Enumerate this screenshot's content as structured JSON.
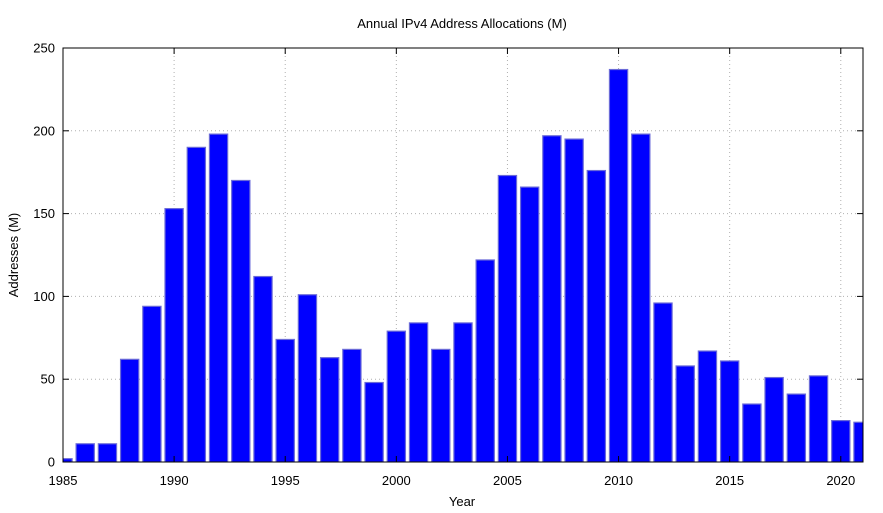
{
  "chart_data": {
    "type": "bar",
    "title": "Annual IPv4 Address Allocations (M)",
    "xlabel": "Year",
    "ylabel": "Addresses (M)",
    "xlim": [
      1985,
      2021
    ],
    "ylim": [
      0,
      250
    ],
    "xticks": [
      1985,
      1990,
      1995,
      2000,
      2005,
      2010,
      2015,
      2020
    ],
    "yticks": [
      0,
      50,
      100,
      150,
      200,
      250
    ],
    "grid": true,
    "bar_color": "#0000ff",
    "x": [
      1985,
      1986,
      1987,
      1988,
      1989,
      1990,
      1991,
      1992,
      1993,
      1994,
      1995,
      1996,
      1997,
      1998,
      1999,
      2000,
      2001,
      2002,
      2003,
      2004,
      2005,
      2006,
      2007,
      2008,
      2009,
      2010,
      2011,
      2012,
      2013,
      2014,
      2015,
      2016,
      2017,
      2018,
      2019,
      2020,
      2021
    ],
    "values": [
      2,
      11,
      11,
      62,
      94,
      153,
      190,
      198,
      170,
      112,
      74,
      101,
      63,
      68,
      48,
      79,
      84,
      68,
      84,
      122,
      173,
      166,
      197,
      195,
      176,
      237,
      198,
      96,
      58,
      67,
      61,
      35,
      51,
      41,
      52,
      25,
      24
    ]
  }
}
